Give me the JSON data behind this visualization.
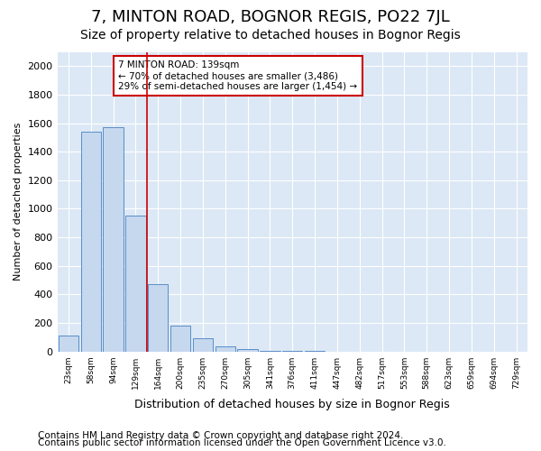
{
  "title1": "7, MINTON ROAD, BOGNOR REGIS, PO22 7JL",
  "title2": "Size of property relative to detached houses in Bognor Regis",
  "xlabel": "Distribution of detached houses by size in Bognor Regis",
  "ylabel": "Number of detached properties",
  "footer1": "Contains HM Land Registry data © Crown copyright and database right 2024.",
  "footer2": "Contains public sector information licensed under the Open Government Licence v3.0.",
  "categories": [
    "23sqm",
    "58sqm",
    "94sqm",
    "129sqm",
    "164sqm",
    "200sqm",
    "235sqm",
    "270sqm",
    "305sqm",
    "341sqm",
    "376sqm",
    "411sqm",
    "447sqm",
    "482sqm",
    "517sqm",
    "553sqm",
    "588sqm",
    "623sqm",
    "659sqm",
    "694sqm",
    "729sqm"
  ],
  "values": [
    110,
    1540,
    1570,
    950,
    475,
    180,
    90,
    35,
    15,
    5,
    2,
    1,
    0,
    0,
    0,
    0,
    0,
    0,
    0,
    0,
    0
  ],
  "bar_color": "#c5d8ee",
  "bar_edge_color": "#5b8dc8",
  "annotation_line1": "7 MINTON ROAD: 139sqm",
  "annotation_line2": "← 70% of detached houses are smaller (3,486)",
  "annotation_line3": "29% of semi-detached houses are larger (1,454) →",
  "vline_x": 3.5,
  "vline_color": "#cc0000",
  "annotation_box_edgecolor": "#cc0000",
  "ylim": [
    0,
    2100
  ],
  "yticks": [
    0,
    200,
    400,
    600,
    800,
    1000,
    1200,
    1400,
    1600,
    1800,
    2000
  ],
  "bg_color": "#dce8f5",
  "plot_bg_color": "#dce8f5",
  "grid_color": "#ffffff",
  "title1_fontsize": 13,
  "title2_fontsize": 10,
  "footer_fontsize": 7.5,
  "ylabel_fontsize": 8,
  "xlabel_fontsize": 9
}
